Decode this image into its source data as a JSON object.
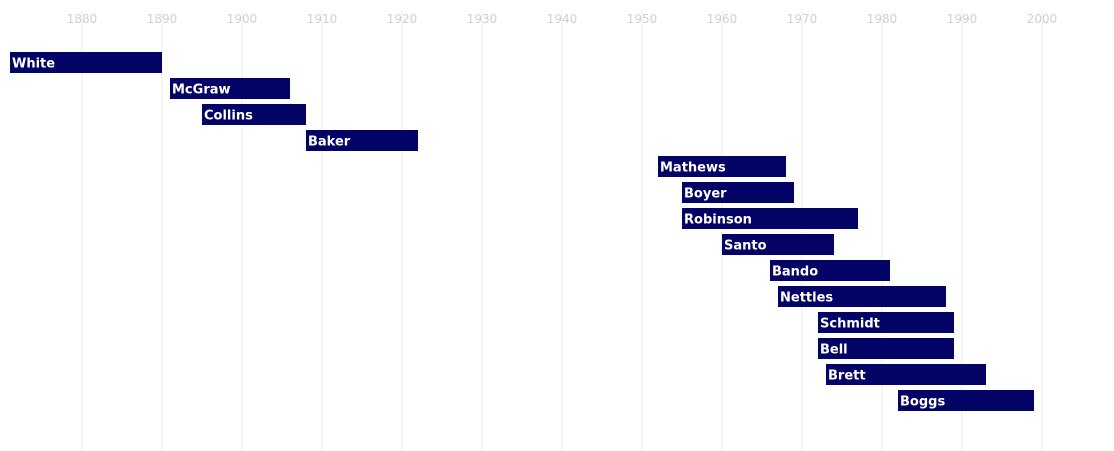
{
  "chart_data": {
    "type": "bar",
    "orientation": "horizontal",
    "title": "",
    "xlabel": "",
    "ylabel": "",
    "xlim": [
      1871,
      2006
    ],
    "x_ticks": [
      1880,
      1890,
      1900,
      1910,
      1920,
      1930,
      1940,
      1950,
      1960,
      1970,
      1980,
      1990,
      2000
    ],
    "grid": "vertical",
    "legend": "none",
    "bar_color": "#040466",
    "label_color": "#ffffff",
    "tick_color": "#cfcfcf",
    "grid_color": "#ececec",
    "series": [
      {
        "label": "White",
        "start": 1871,
        "end": 1890
      },
      {
        "label": "McGraw",
        "start": 1891,
        "end": 1906
      },
      {
        "label": "Collins",
        "start": 1895,
        "end": 1908
      },
      {
        "label": "Baker",
        "start": 1908,
        "end": 1922
      },
      {
        "label": "Mathews",
        "start": 1952,
        "end": 1968
      },
      {
        "label": "Boyer",
        "start": 1955,
        "end": 1969
      },
      {
        "label": "Robinson",
        "start": 1955,
        "end": 1977
      },
      {
        "label": "Santo",
        "start": 1960,
        "end": 1974
      },
      {
        "label": "Bando",
        "start": 1966,
        "end": 1981
      },
      {
        "label": "Nettles",
        "start": 1967,
        "end": 1988
      },
      {
        "label": "Schmidt",
        "start": 1972,
        "end": 1989
      },
      {
        "label": "Bell",
        "start": 1972,
        "end": 1989
      },
      {
        "label": "Brett",
        "start": 1973,
        "end": 1993
      },
      {
        "label": "Boggs",
        "start": 1982,
        "end": 1999
      }
    ]
  }
}
